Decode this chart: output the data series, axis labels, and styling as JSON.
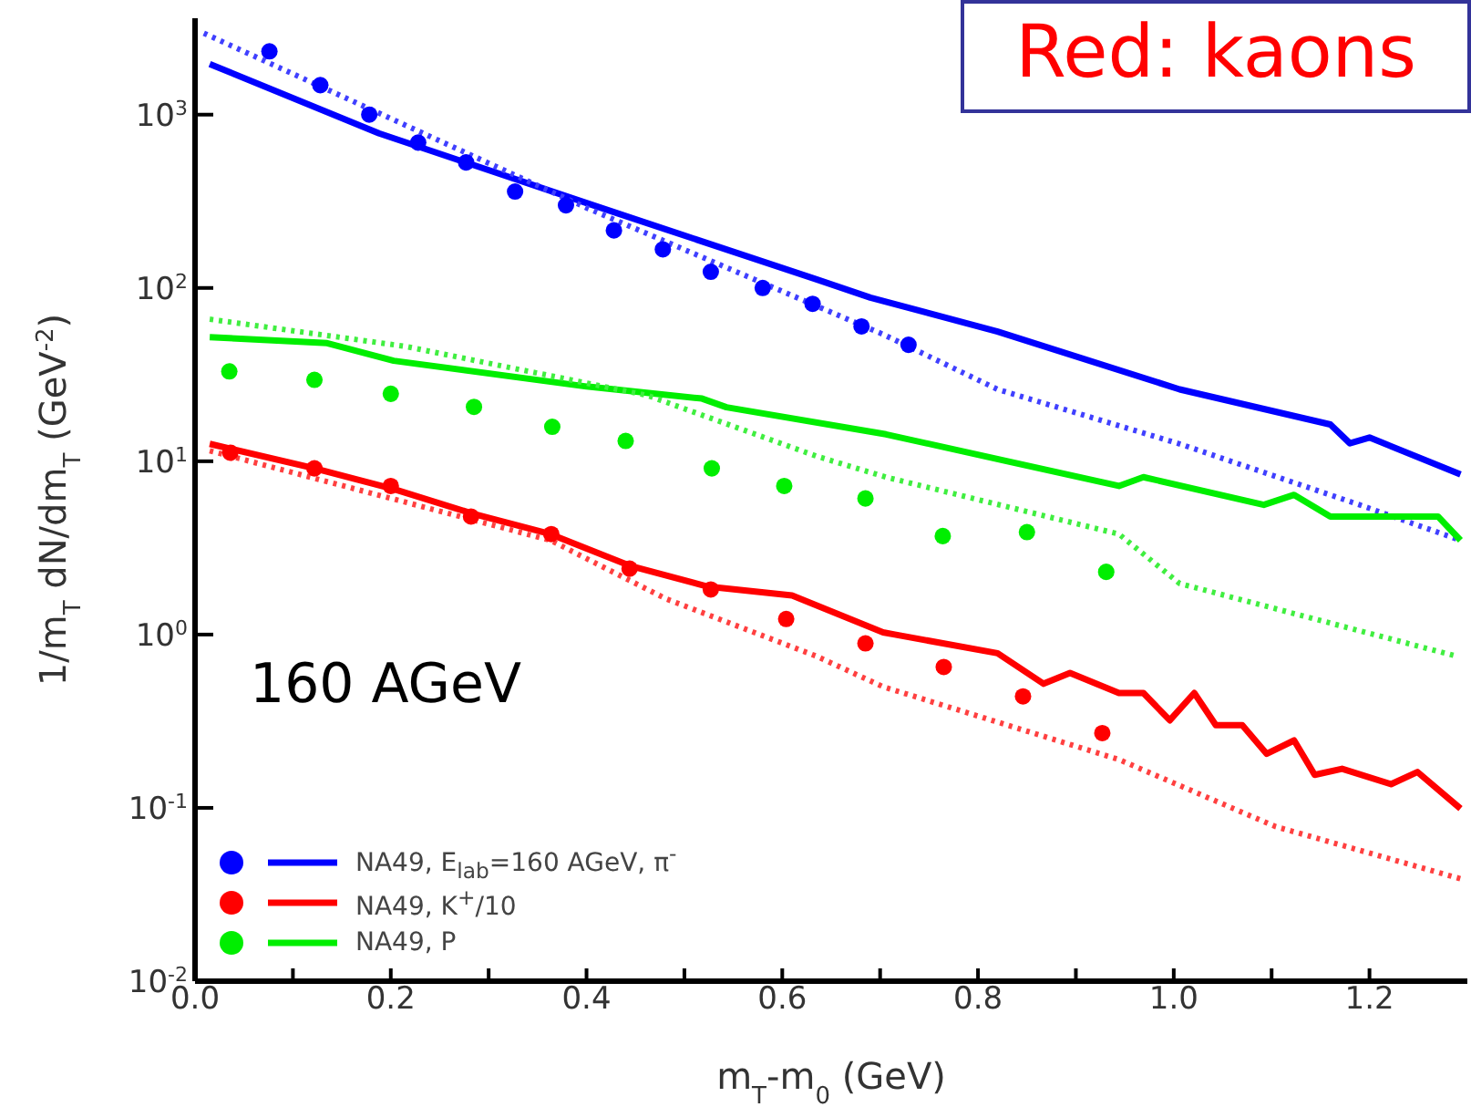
{
  "chart_data": {
    "type": "scatter",
    "xlabel": "m$_{T}$-m$_{0}$ (GeV)",
    "ylabel": "1/m$_{T}$ dN/dm$_{T}$ (GeV$^{-2}$)",
    "log": "y",
    "xlim": [
      0,
      1.3
    ],
    "ylim": [
      0.01,
      3600
    ],
    "xticks": [
      {
        "value": 0,
        "label": "0.0"
      },
      {
        "value": 0.1,
        "label": null
      },
      0.2,
      {
        "value": 0.3,
        "label": null
      },
      0.4,
      {
        "value": 0.5,
        "label": null
      },
      0.6,
      {
        "value": 0.7,
        "label": null
      },
      0.8,
      {
        "value": 0.9,
        "label": null
      },
      {
        "value": 1,
        "label": "1.0"
      },
      {
        "value": 1.1,
        "label": null
      },
      1.2
    ],
    "yticks": [
      {
        "value": 0.01,
        "label": "10$^{-2}$"
      },
      {
        "value": 0.1,
        "label": "10$^{-1}$"
      },
      {
        "value": 1,
        "label": "10$^{0}$"
      },
      {
        "value": 10,
        "label": "10$^{1}$"
      },
      {
        "value": 100,
        "label": "10$^{2}$"
      },
      {
        "value": 1000,
        "label": "10$^{3}$"
      }
    ],
    "legend": "bottom left",
    "annotations": [
      "160 AGeV",
      "Red: kaons"
    ],
    "series": [
      {
        "name": "NA49, E$_{lab}$=160 AGeV, π$^{-}$",
        "color": "#0000ff",
        "marker": "circle",
        "x": [
          0.076,
          0.128,
          0.178,
          0.228,
          0.277,
          0.327,
          0.379,
          0.428,
          0.478,
          0.527,
          0.58,
          0.631,
          0.681,
          0.729
        ],
        "values": [
          2320,
          1480,
          1000,
          690,
          530,
          360,
          300,
          215,
          167,
          124,
          100,
          81,
          60,
          47
        ]
      },
      {
        "name": "NA49, K$^{+}$/10",
        "color": "#ff0000",
        "marker": "circle",
        "x": [
          0.036,
          0.122,
          0.2,
          0.282,
          0.364,
          0.444,
          0.527,
          0.604,
          0.685,
          0.765,
          0.846,
          0.927
        ],
        "values": [
          11.2,
          9.1,
          7.2,
          4.8,
          3.8,
          2.4,
          1.82,
          1.23,
          0.89,
          0.65,
          0.44,
          0.27
        ]
      },
      {
        "name": "NA49, P",
        "color": "#00ee00",
        "marker": "circle",
        "x": [
          0.035,
          0.122,
          0.2,
          0.285,
          0.365,
          0.44,
          0.528,
          0.602,
          0.685,
          0.764,
          0.85,
          0.931
        ],
        "values": [
          33,
          29.5,
          24.5,
          20.6,
          15.8,
          13.1,
          9.1,
          7.2,
          6.1,
          3.7,
          3.9,
          2.3
        ]
      },
      {
        "type": "line",
        "color": "#0000ff",
        "line_style": "solid",
        "x": [
          0.015,
          0.188,
          0.4,
          0.635,
          0.69,
          0.82,
          1.006,
          1.16,
          1.18,
          1.2,
          1.293
        ],
        "values": [
          1960,
          780,
          309,
          112,
          88,
          56,
          26,
          16.3,
          12.7,
          13.7,
          8.4
        ]
      },
      {
        "type": "line",
        "color": "#4040ff",
        "line_style": "dotted",
        "x": [
          0.009,
          0.2,
          0.4,
          0.703,
          0.82,
          1.006,
          1.19,
          1.293
        ],
        "values": [
          2950,
          950,
          290,
          54,
          26,
          12.6,
          5.6,
          3.5
        ]
      },
      {
        "type": "line",
        "color": "#00ee00",
        "line_style": "solid",
        "x": [
          0.015,
          0.135,
          0.203,
          0.4,
          0.518,
          0.543,
          0.706,
          0.944,
          0.969,
          1.092,
          1.123,
          1.16,
          1.27,
          1.293
        ],
        "values": [
          52,
          48,
          38,
          27,
          23,
          20.5,
          14.3,
          7.2,
          8.1,
          5.6,
          6.4,
          4.8,
          4.8,
          3.5
        ]
      },
      {
        "type": "line",
        "color": "#40ee40",
        "line_style": "dotted",
        "x": [
          0.015,
          0.215,
          0.462,
          0.635,
          0.706,
          0.944,
          1.006,
          1.289
        ],
        "values": [
          66,
          46,
          24,
          10.7,
          8.1,
          3.8,
          1.97,
          0.75
        ]
      },
      {
        "type": "line",
        "color": "#ff0000",
        "line_style": "solid",
        "x": [
          0.015,
          0.122,
          0.203,
          0.283,
          0.363,
          0.444,
          0.524,
          0.61,
          0.703,
          0.715,
          0.82,
          0.867,
          0.894,
          0.944,
          0.969,
          0.996,
          1.021,
          1.043,
          1.07,
          1.095,
          1.123,
          1.144,
          1.172,
          1.222,
          1.249,
          1.293
        ],
        "values": [
          12.6,
          9.1,
          6.9,
          5.0,
          3.8,
          2.5,
          1.89,
          1.68,
          1.03,
          1.0,
          0.78,
          0.52,
          0.6,
          0.46,
          0.46,
          0.32,
          0.46,
          0.3,
          0.3,
          0.205,
          0.245,
          0.155,
          0.168,
          0.137,
          0.161,
          0.099
        ]
      },
      {
        "type": "line",
        "color": "#ff4040",
        "line_style": "dotted",
        "x": [
          0.015,
          0.363,
          0.481,
          0.635,
          0.703,
          0.944,
          1.104,
          1.293
        ],
        "values": [
          11.5,
          3.5,
          1.61,
          0.75,
          0.5,
          0.19,
          0.078,
          0.039
        ]
      }
    ]
  }
}
